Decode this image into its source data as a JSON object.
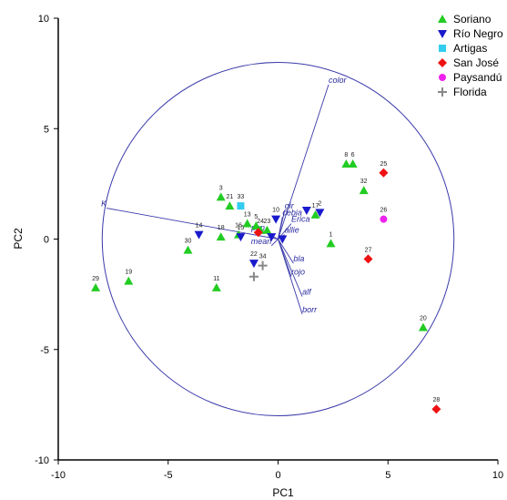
{
  "chart_data": {
    "type": "scatter",
    "title": "",
    "xlabel": "PC1",
    "ylabel": "PC2",
    "xlim": [
      -10,
      10
    ],
    "ylim": [
      -10,
      10
    ],
    "xticks": [
      -10,
      -5,
      0,
      5,
      10
    ],
    "yticks": [
      -10,
      -5,
      0,
      5,
      10
    ],
    "xtick_labels": [
      "-10",
      "-5",
      "0",
      "5",
      "10"
    ],
    "ytick_labels": [
      "-10",
      "-5",
      "0",
      "5",
      "10"
    ],
    "grid": false,
    "legend_position": "top-right",
    "circle_radius": 8,
    "series": [
      {
        "name": "Soriano",
        "marker": "triangle-up",
        "color": "#22cc22",
        "points": [
          {
            "label": "29",
            "x": -8.3,
            "y": -2.2
          },
          {
            "label": "19",
            "x": -6.8,
            "y": -1.9
          },
          {
            "label": "11",
            "x": -2.8,
            "y": -2.2
          },
          {
            "label": "30",
            "x": -4.1,
            "y": -0.5
          },
          {
            "label": "18",
            "x": -2.6,
            "y": 0.1
          },
          {
            "label": "16",
            "x": -1.8,
            "y": 0.2
          },
          {
            "label": "3",
            "x": -2.6,
            "y": 1.9
          },
          {
            "label": "21",
            "x": -2.2,
            "y": 1.5
          },
          {
            "label": "13",
            "x": -1.4,
            "y": 0.7
          },
          {
            "label": "5",
            "x": -1.0,
            "y": 0.6
          },
          {
            "label": "24",
            "x": -0.8,
            "y": 0.4
          },
          {
            "label": "23",
            "x": -0.5,
            "y": 0.4
          },
          {
            "label": "17",
            "x": 1.7,
            "y": 1.1
          },
          {
            "label": "1",
            "x": 2.4,
            "y": -0.2
          },
          {
            "label": "8",
            "x": 3.1,
            "y": 3.4
          },
          {
            "label": "6",
            "x": 3.4,
            "y": 3.4
          },
          {
            "label": "32",
            "x": 3.9,
            "y": 2.2
          },
          {
            "label": "20",
            "x": 6.6,
            "y": -4.0
          }
        ]
      },
      {
        "name": "Río Negro",
        "marker": "triangle-down",
        "color": "#1a1acc",
        "points": [
          {
            "label": "14",
            "x": -3.6,
            "y": 0.2
          },
          {
            "label": "15",
            "x": -1.7,
            "y": 0.1
          },
          {
            "label": "10",
            "x": -0.1,
            "y": 0.9
          },
          {
            "label": "22",
            "x": -1.1,
            "y": -1.1
          },
          {
            "label": "",
            "x": 1.3,
            "y": 1.3
          },
          {
            "label": "2",
            "x": 1.9,
            "y": 1.2
          },
          {
            "label": "",
            "x": -0.3,
            "y": 0.1
          },
          {
            "label": "",
            "x": 0.2,
            "y": 0.0
          }
        ]
      },
      {
        "name": "Artigas",
        "marker": "square",
        "color": "#33ccee",
        "points": [
          {
            "label": "33",
            "x": -1.7,
            "y": 1.5
          }
        ]
      },
      {
        "name": "San José",
        "marker": "diamond",
        "color": "#ee1111",
        "points": [
          {
            "label": "25",
            "x": 4.8,
            "y": 3.0
          },
          {
            "label": "27",
            "x": 4.1,
            "y": -0.9
          },
          {
            "label": "28",
            "x": 7.2,
            "y": -7.7
          },
          {
            "label": "",
            "x": -0.9,
            "y": 0.3
          }
        ]
      },
      {
        "name": "Paysandú",
        "marker": "circle",
        "color": "#ee22ee",
        "points": [
          {
            "label": "26",
            "x": 4.8,
            "y": 0.9
          }
        ]
      },
      {
        "name": "Florida",
        "marker": "plus",
        "color": "#888888",
        "points": [
          {
            "label": "34",
            "x": -0.7,
            "y": -1.2
          },
          {
            "label": "",
            "x": -1.1,
            "y": -1.7
          }
        ]
      }
    ],
    "loadings": [
      {
        "label": "color",
        "x": 2.3,
        "y": 7.0
      },
      {
        "label": "K",
        "x": -7.8,
        "y": 1.4
      },
      {
        "label": "gir",
        "x": 0.3,
        "y": 1.3
      },
      {
        "label": "cebia",
        "x": 0.2,
        "y": 1.0
      },
      {
        "label": "Erica",
        "x": 0.6,
        "y": 0.7
      },
      {
        "label": "allie",
        "x": 0.3,
        "y": 0.2
      },
      {
        "label": "mean",
        "x": -0.3,
        "y": -0.3
      },
      {
        "label": "pan",
        "x": -0.6,
        "y": 0.3
      },
      {
        "label": "bla",
        "x": 0.7,
        "y": -1.1
      },
      {
        "label": "rojo",
        "x": 0.6,
        "y": -1.7
      },
      {
        "label": "alf",
        "x": 1.1,
        "y": -2.6
      },
      {
        "label": "borr",
        "x": 1.1,
        "y": -3.4
      }
    ]
  }
}
